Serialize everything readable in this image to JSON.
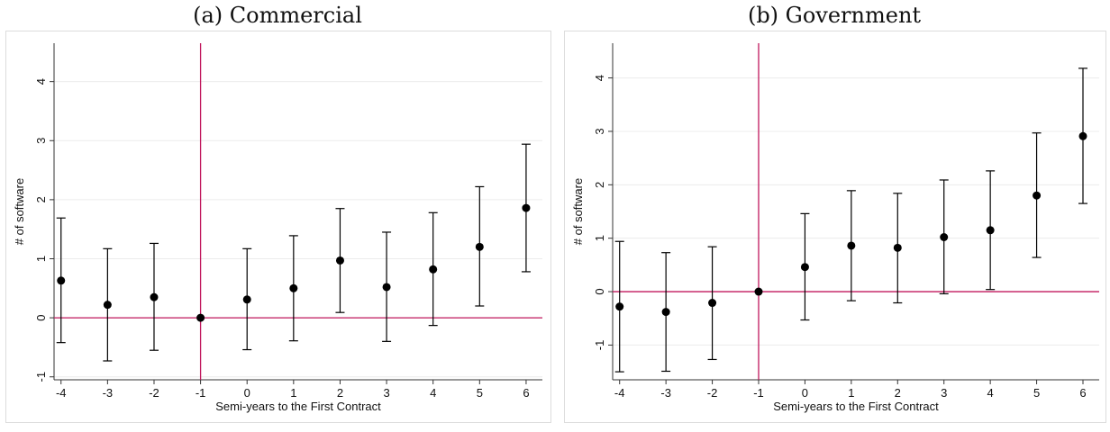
{
  "chart_data": [
    {
      "type": "scatter",
      "title": "(a) Commercial",
      "xlabel": "Semi-years to the First Contract",
      "ylabel": "# of software",
      "x": [
        -4,
        -3,
        -2,
        -1,
        0,
        1,
        2,
        3,
        4,
        5,
        6
      ],
      "y": [
        0.63,
        0.22,
        0.35,
        0.0,
        0.31,
        0.5,
        0.97,
        0.52,
        0.82,
        1.2,
        1.86
      ],
      "ci_lower": [
        -0.42,
        -0.73,
        -0.55,
        0.0,
        -0.54,
        -0.39,
        0.09,
        -0.4,
        -0.13,
        0.2,
        0.78
      ],
      "ci_upper": [
        1.69,
        1.17,
        1.26,
        0.0,
        1.17,
        1.39,
        1.85,
        1.45,
        1.78,
        2.22,
        2.94
      ],
      "xticks": [
        "-4",
        "-3",
        "-2",
        "-1",
        "0",
        "1",
        "2",
        "3",
        "4",
        "5",
        "6"
      ],
      "yticks": [
        "-1",
        "0",
        "1",
        "2",
        "3",
        "4"
      ],
      "xlim": [
        -4.15,
        6.35
      ],
      "ylim": [
        -1.05,
        4.65
      ],
      "vline_x": -1,
      "hline_y": 0,
      "ref_line_color": "#c0175c",
      "marker_color": "#000000",
      "grid": true
    },
    {
      "type": "scatter",
      "title": "(b) Government",
      "xlabel": "Semi-years to the First Contract",
      "ylabel": "# of software",
      "x": [
        -4,
        -3,
        -2,
        -1,
        0,
        1,
        2,
        3,
        4,
        5,
        6
      ],
      "y": [
        -0.28,
        -0.38,
        -0.21,
        0.0,
        0.46,
        0.86,
        0.82,
        1.02,
        1.15,
        1.8,
        2.91
      ],
      "ci_lower": [
        -1.5,
        -1.49,
        -1.27,
        0.0,
        -0.53,
        -0.17,
        -0.21,
        -0.04,
        0.04,
        0.64,
        1.65
      ],
      "ci_upper": [
        0.94,
        0.73,
        0.84,
        0.0,
        1.46,
        1.89,
        1.84,
        2.09,
        2.26,
        2.97,
        4.18
      ],
      "xticks": [
        "-4",
        "-3",
        "-2",
        "-1",
        "0",
        "1",
        "2",
        "3",
        "4",
        "5",
        "6"
      ],
      "yticks": [
        "-1",
        "0",
        "1",
        "2",
        "3",
        "4"
      ],
      "xlim": [
        -4.15,
        6.35
      ],
      "ylim": [
        -1.65,
        4.65
      ],
      "vline_x": -1,
      "hline_y": 0,
      "ref_line_color": "#c0175c",
      "marker_color": "#000000",
      "grid": true
    }
  ]
}
